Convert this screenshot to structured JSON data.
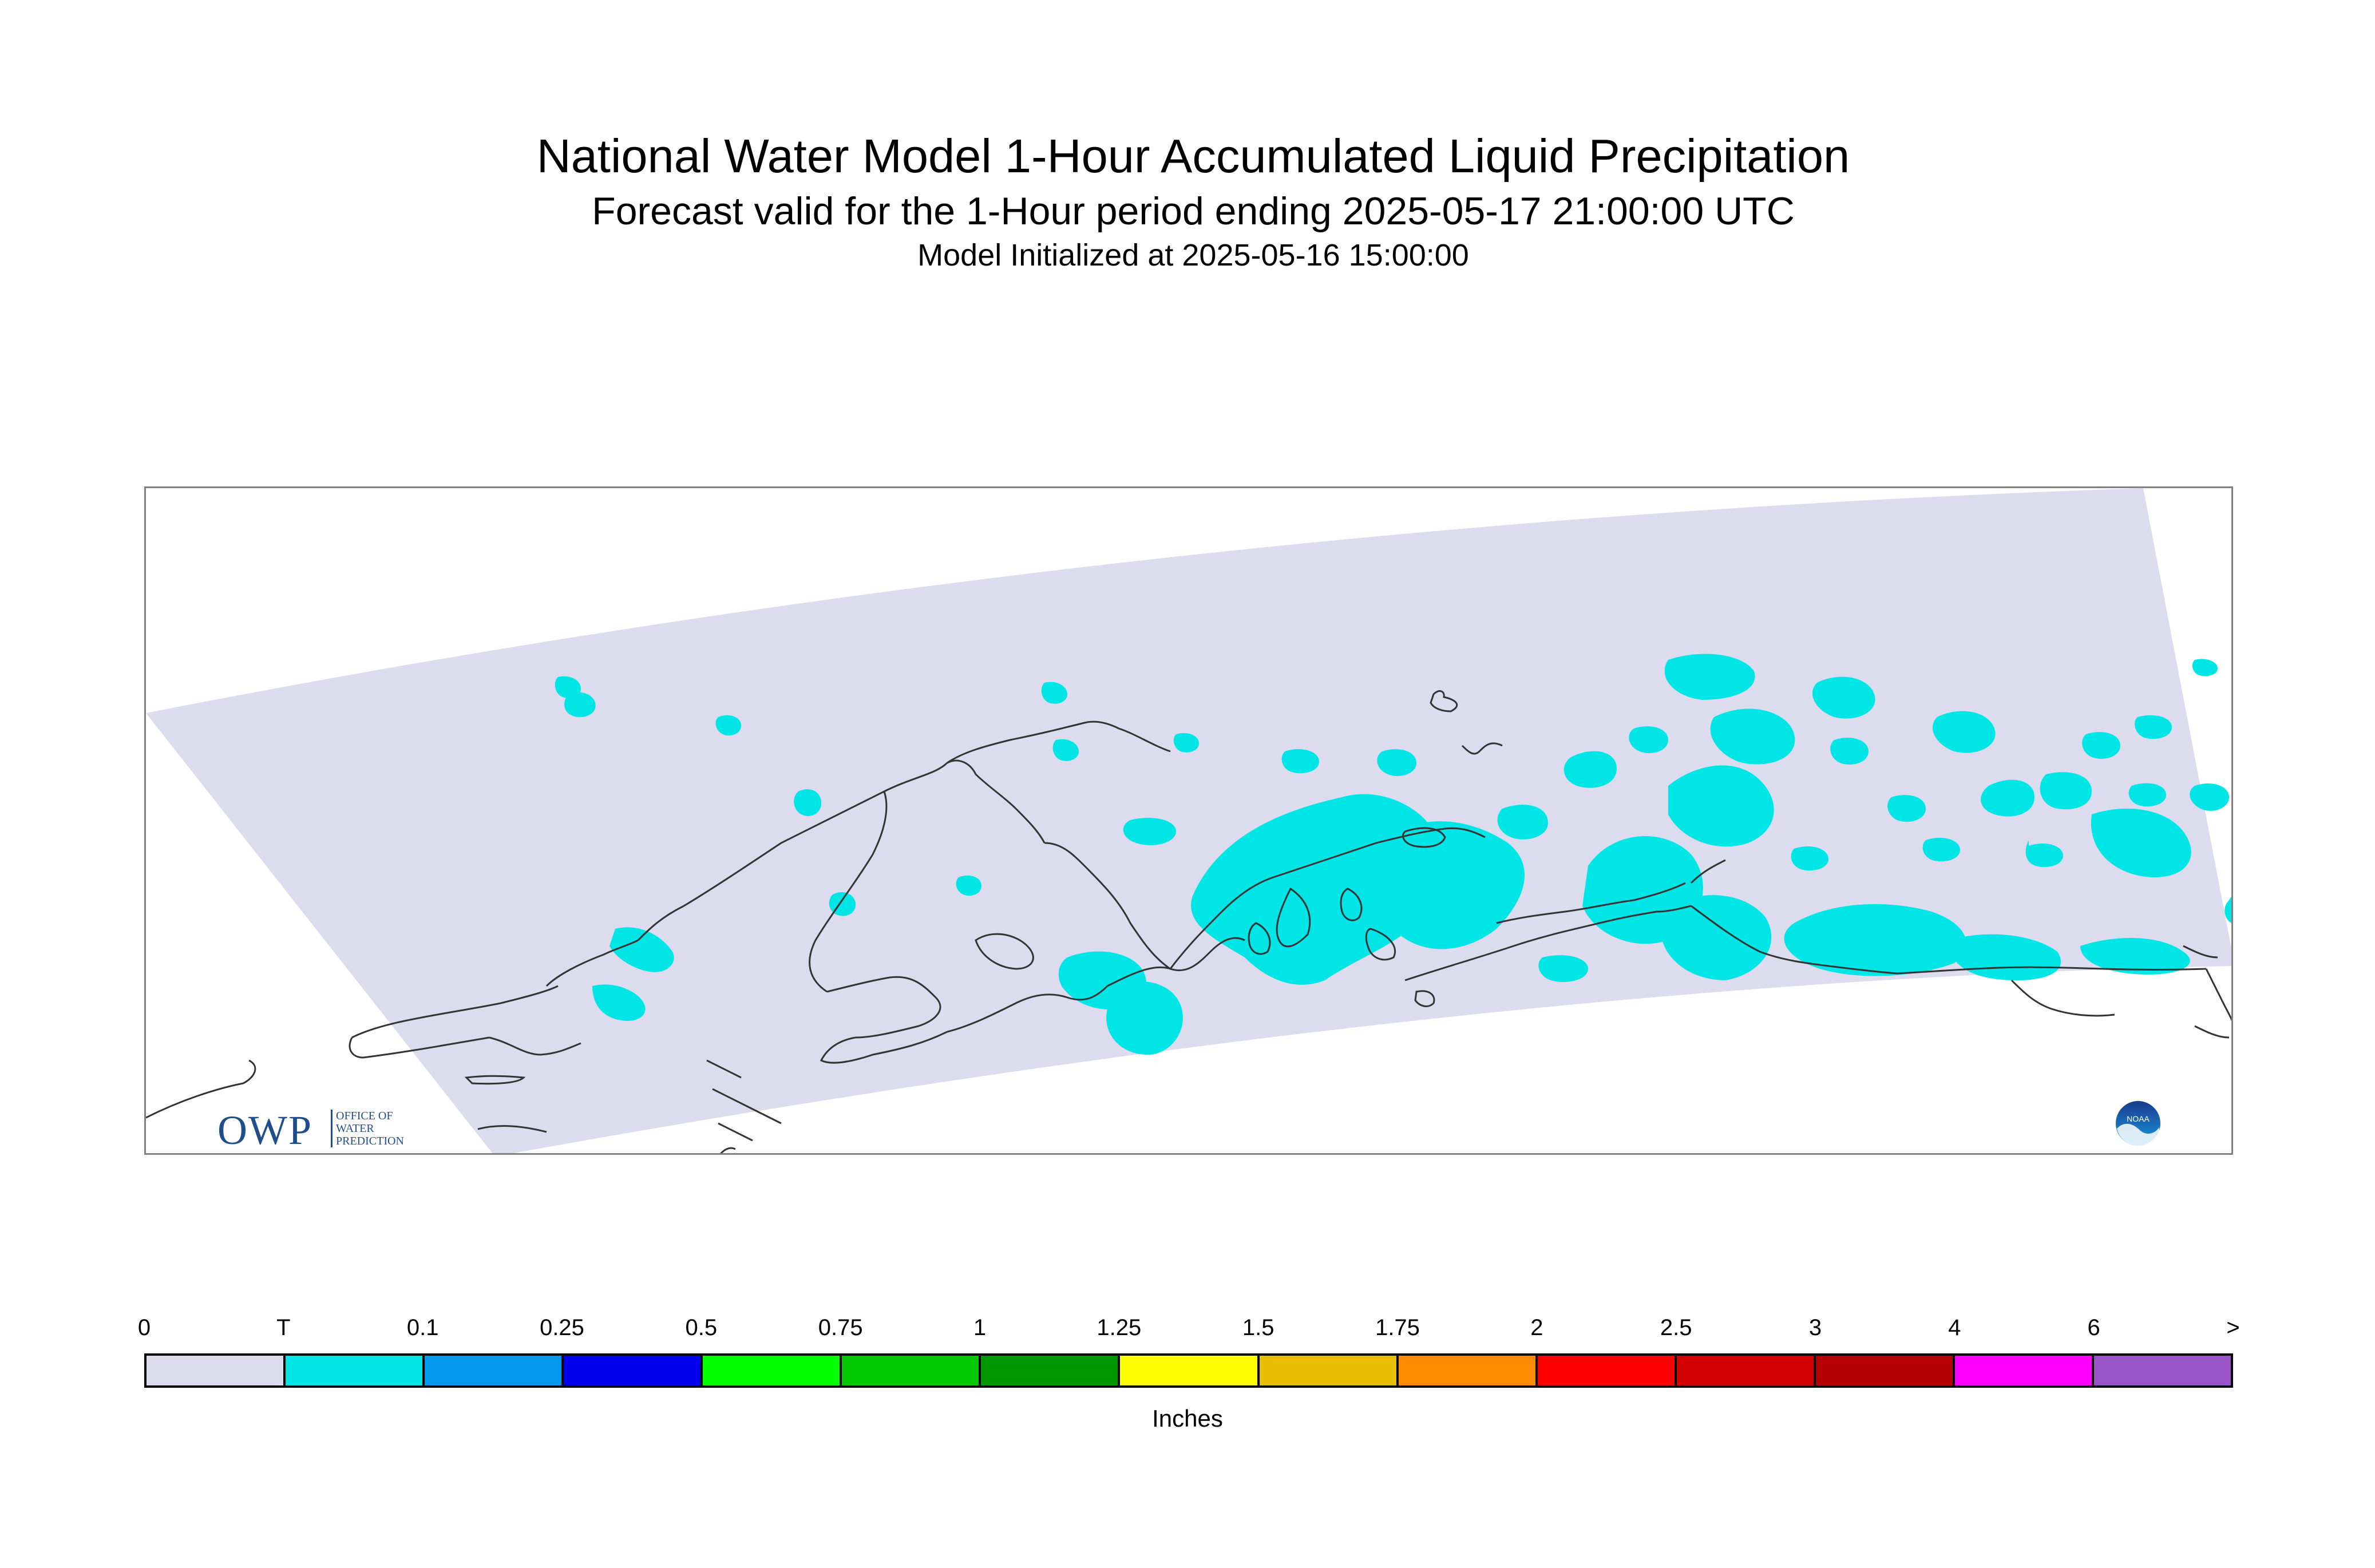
{
  "title": "National Water Model 1-Hour Accumulated Liquid Precipitation",
  "subtitle": "Forecast valid for the 1-Hour period ending 2025-05-17 21:00:00 UTC",
  "init_line": "Model Initialized at 2025-05-16 15:00:00",
  "logos": {
    "owp_letters": "OWP",
    "owp_subtext": "OFFICE OF WATER PREDICTION",
    "noaa": "NOAA"
  },
  "colors": {
    "domain_fill": "#dcdcee",
    "trace_fill": "#00e6e6",
    "coastline": "#333333"
  },
  "colorbar": {
    "units": "Inches",
    "labels": [
      "0",
      "T",
      "0.1",
      "0.25",
      "0.5",
      "0.75",
      "1",
      "1.25",
      "1.5",
      "1.75",
      "2",
      "2.5",
      "3",
      "4",
      "6",
      ">"
    ],
    "colors": [
      "#dcdcee",
      "#00e6e6",
      "#0099ee",
      "#0000ee",
      "#00ff00",
      "#00c800",
      "#009600",
      "#ffff00",
      "#e6c000",
      "#ff8c00",
      "#ff0000",
      "#d20000",
      "#b40000",
      "#ff00ff",
      "#9955c8"
    ]
  }
}
